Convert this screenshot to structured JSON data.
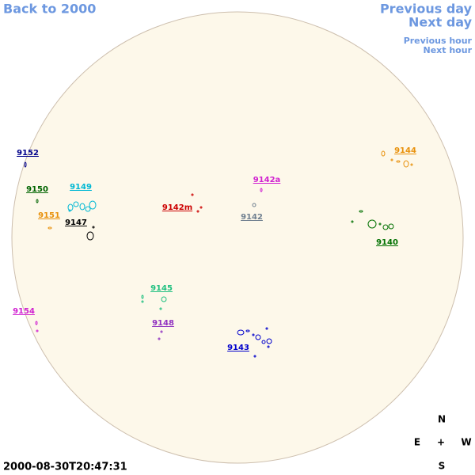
{
  "nav": {
    "back": "Back to 2000",
    "previous_day": "Previous day",
    "next_day": "Next day",
    "previous_hour": "Previous hour",
    "next_hour": "Next hour"
  },
  "regions": [
    "9152",
    "9150",
    "9149",
    "9151",
    "9147",
    "9142m",
    "9142a",
    "9142",
    "9144",
    "9140",
    "9145",
    "9148",
    "9154",
    "9143"
  ],
  "timestamp": "2000-08-30T20:47:31",
  "compass": {
    "north": "N",
    "east": "E",
    "center": "+",
    "west": "W",
    "south": "S"
  }
}
